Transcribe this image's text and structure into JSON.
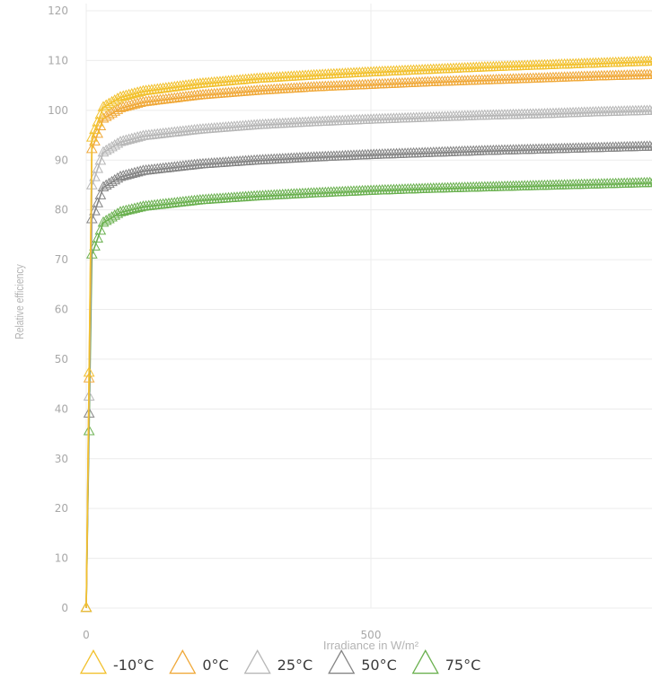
{
  "chart_data": {
    "type": "line",
    "title": "",
    "xlabel": "Irradiance in W/m²",
    "ylabel": "Relative efficiency",
    "xlim": [
      0,
      1000
    ],
    "ylim": [
      0,
      120
    ],
    "xticks": [
      0,
      500
    ],
    "yticks": [
      0,
      10,
      20,
      30,
      40,
      50,
      60,
      70,
      80,
      90,
      100,
      110,
      120
    ],
    "grid": true,
    "legend_position": "bottom",
    "marker": "triangle",
    "series": [
      {
        "name": "-10°C",
        "color": "#f2c12e",
        "x": [
          0,
          10,
          30,
          60,
          100,
          200,
          300,
          400,
          500,
          600,
          700,
          800,
          900,
          1000
        ],
        "values": [
          0,
          94.5,
          100.6,
          102.6,
          103.8,
          105.3,
          106.3,
          107.0,
          107.6,
          108.1,
          108.6,
          109.0,
          109.4,
          109.8
        ]
      },
      {
        "name": "0°C",
        "color": "#f0a93a",
        "x": [
          0,
          10,
          30,
          60,
          100,
          200,
          300,
          400,
          500,
          600,
          700,
          800,
          900,
          1000
        ],
        "values": [
          0,
          92.2,
          98.3,
          100.4,
          101.6,
          103.0,
          103.9,
          104.6,
          105.1,
          105.6,
          106.0,
          106.4,
          106.8,
          107.1
        ]
      },
      {
        "name": "25°C",
        "color": "#b7b7b7",
        "x": [
          0,
          10,
          30,
          60,
          100,
          200,
          300,
          400,
          500,
          600,
          700,
          800,
          900,
          1000
        ],
        "values": [
          0,
          84.9,
          91.5,
          93.6,
          94.8,
          96.1,
          97.0,
          97.6,
          98.1,
          98.5,
          98.9,
          99.2,
          99.6,
          99.9
        ]
      },
      {
        "name": "50°C",
        "color": "#858585",
        "x": [
          0,
          10,
          30,
          60,
          100,
          200,
          300,
          400,
          500,
          600,
          700,
          800,
          900,
          1000
        ],
        "values": [
          0,
          78.1,
          84.5,
          86.6,
          87.8,
          89.1,
          89.9,
          90.5,
          91.0,
          91.4,
          91.8,
          92.1,
          92.4,
          92.7
        ]
      },
      {
        "name": "75°C",
        "color": "#6bb150",
        "x": [
          0,
          10,
          30,
          60,
          100,
          200,
          300,
          400,
          500,
          600,
          700,
          800,
          900,
          1000
        ],
        "values": [
          0,
          71.0,
          77.4,
          79.5,
          80.6,
          81.9,
          82.7,
          83.3,
          83.8,
          84.2,
          84.5,
          84.8,
          85.1,
          85.4
        ]
      }
    ]
  }
}
